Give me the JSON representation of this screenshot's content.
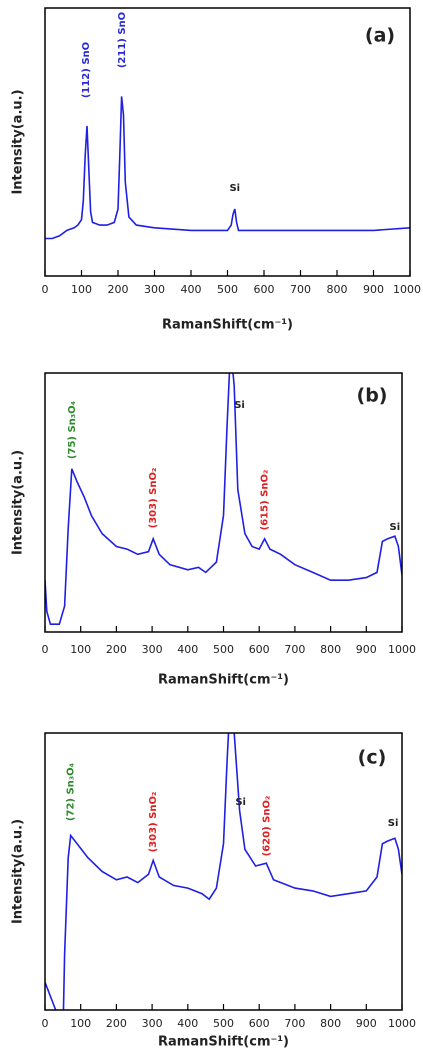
{
  "chart_data": [
    {
      "type": "line",
      "panel_label": "(a)",
      "xlabel": "RamanShift(cm⁻¹)",
      "ylabel": "Intensity(a.u.)",
      "color": "#1f1fe6",
      "xlim": [
        0,
        1000
      ],
      "ylim": [
        0,
        100
      ],
      "xticks": [
        0,
        100,
        200,
        300,
        400,
        500,
        600,
        700,
        800,
        900,
        1000
      ],
      "x": [
        0,
        20,
        40,
        60,
        80,
        90,
        100,
        105,
        110,
        115,
        120,
        125,
        130,
        150,
        170,
        190,
        200,
        205,
        210,
        215,
        220,
        230,
        250,
        300,
        400,
        500,
        510,
        515,
        520,
        525,
        530,
        540,
        600,
        700,
        800,
        900,
        1000
      ],
      "values": [
        14,
        14,
        15,
        17,
        18,
        19,
        21,
        28,
        45,
        56,
        40,
        24,
        20,
        19,
        19,
        20,
        25,
        45,
        67,
        60,
        35,
        22,
        19,
        18,
        17,
        17,
        19,
        23,
        25,
        20,
        17,
        17,
        17,
        17,
        17,
        17,
        18
      ],
      "annotations": [
        {
          "text": "(112) SnO",
          "color": "#2a2ad0"
        },
        {
          "text": "(211) SnO",
          "color": "#2a2ad0"
        },
        {
          "text": "Si",
          "color": "#222222"
        }
      ]
    },
    {
      "type": "line",
      "panel_label": "(b)",
      "xlabel": "RamanShift(cm⁻¹)",
      "ylabel": "Intensity(a.u.)",
      "color": "#1f1fe6",
      "xlim": [
        0,
        1000
      ],
      "ylim": [
        0,
        100
      ],
      "xticks": [
        0,
        100,
        200,
        300,
        400,
        500,
        600,
        700,
        800,
        900,
        1000
      ],
      "x": [
        0,
        5,
        15,
        40,
        55,
        65,
        75,
        90,
        110,
        130,
        160,
        200,
        230,
        260,
        290,
        303,
        320,
        350,
        400,
        430,
        450,
        480,
        500,
        510,
        520,
        530,
        540,
        560,
        580,
        600,
        615,
        630,
        660,
        700,
        750,
        800,
        850,
        900,
        930,
        945,
        960,
        980,
        990,
        1000
      ],
      "values": [
        20,
        8,
        3,
        3,
        10,
        40,
        63,
        58,
        52,
        45,
        38,
        33,
        32,
        30,
        31,
        36,
        30,
        26,
        24,
        25,
        23,
        27,
        45,
        80,
        110,
        95,
        55,
        38,
        33,
        32,
        36,
        32,
        30,
        26,
        23,
        20,
        20,
        21,
        23,
        35,
        36,
        37,
        33,
        22
      ],
      "annotations": [
        {
          "text": "(75) Sn₃O₄",
          "color": "#2e8b2e"
        },
        {
          "text": "(303) SnO₂",
          "color": "#e02020"
        },
        {
          "text": "Si",
          "color": "#222222"
        },
        {
          "text": "(615) SnO₂",
          "color": "#e02020"
        },
        {
          "text": "Si",
          "color": "#222222"
        }
      ]
    },
    {
      "type": "line",
      "panel_label": "(c)",
      "xlabel": "RamanShift(cm⁻¹)",
      "ylabel": "Intensity(a.u.)",
      "color": "#1f1fe6",
      "xlim": [
        0,
        1000
      ],
      "ylim": [
        0,
        100
      ],
      "xticks": [
        0,
        100,
        200,
        300,
        400,
        500,
        600,
        700,
        800,
        900,
        1000
      ],
      "x": [
        0,
        30,
        50,
        55,
        65,
        72,
        90,
        120,
        160,
        200,
        230,
        260,
        290,
        303,
        320,
        360,
        400,
        440,
        460,
        480,
        500,
        510,
        520,
        530,
        545,
        560,
        590,
        620,
        640,
        700,
        750,
        800,
        850,
        900,
        930,
        945,
        960,
        980,
        990,
        1000
      ],
      "values": [
        10,
        0,
        -10,
        20,
        55,
        63,
        60,
        55,
        50,
        47,
        48,
        46,
        49,
        54,
        48,
        45,
        44,
        42,
        40,
        44,
        60,
        90,
        115,
        100,
        72,
        58,
        52,
        53,
        47,
        44,
        43,
        41,
        42,
        43,
        48,
        60,
        61,
        62,
        58,
        49
      ],
      "annotations": [
        {
          "text": "(72) Sn₃O₄",
          "color": "#2e8b2e"
        },
        {
          "text": "(303) SnO₂",
          "color": "#e02020"
        },
        {
          "text": "Si",
          "color": "#222222"
        },
        {
          "text": "(620) SnO₂",
          "color": "#e02020"
        },
        {
          "text": "Si",
          "color": "#222222"
        }
      ]
    }
  ]
}
